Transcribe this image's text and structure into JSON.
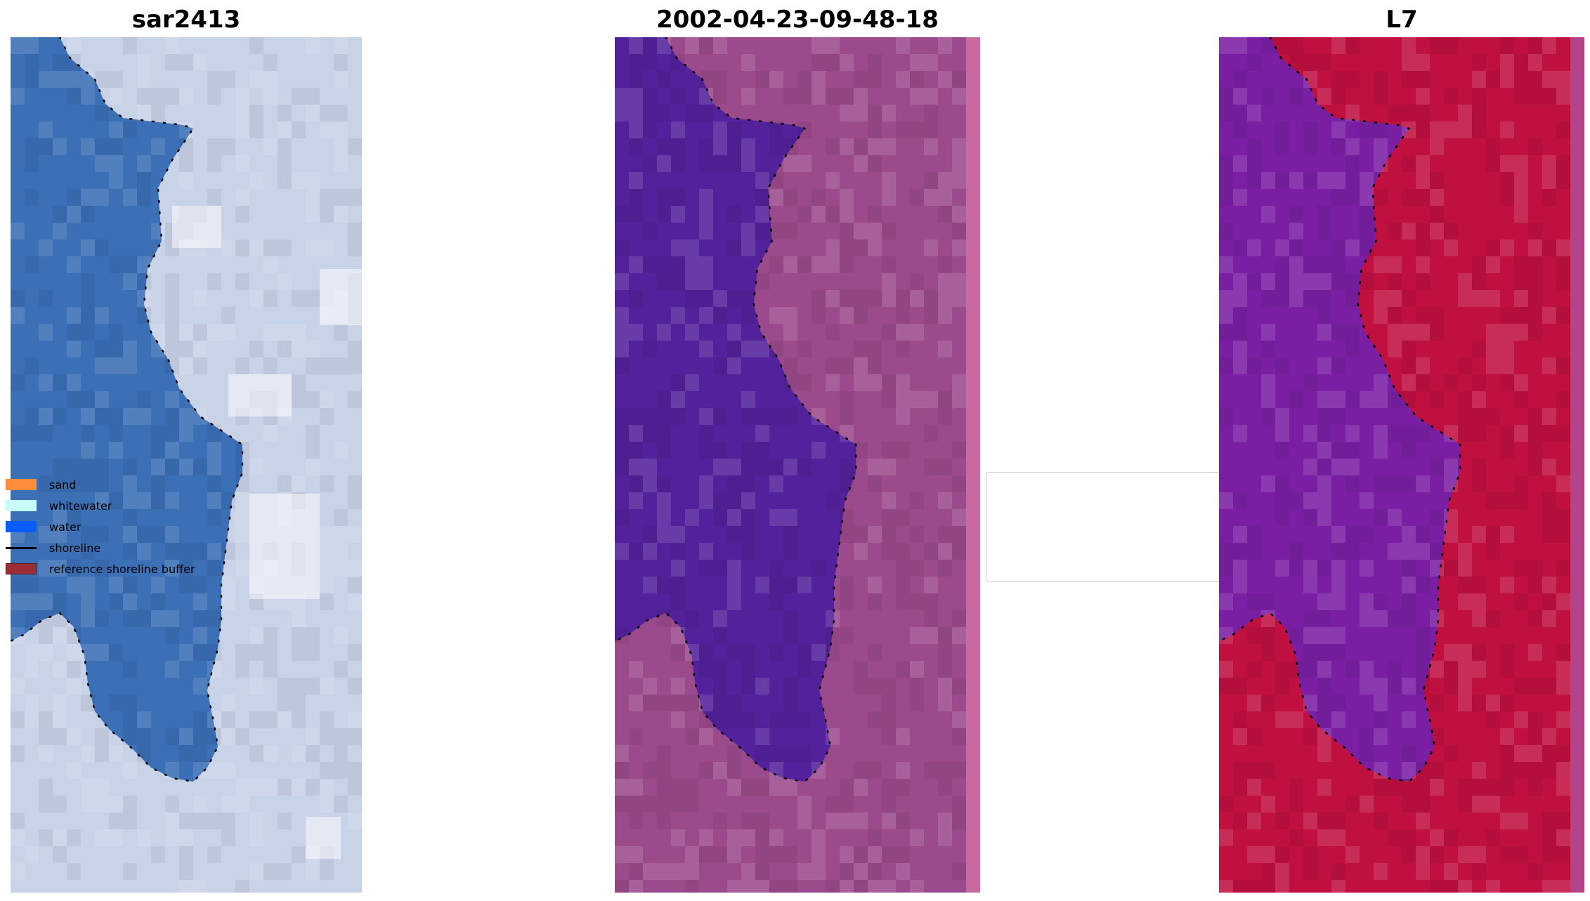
{
  "panels": [
    {
      "title": "sar2413",
      "style": "rgb"
    },
    {
      "title": "2002-04-23-09-48-18",
      "style": "classified"
    },
    {
      "title": "L7",
      "style": "index"
    }
  ],
  "legend": {
    "items": [
      {
        "label": "sand",
        "color": "#ff8c3a",
        "kind": "patch"
      },
      {
        "label": "whitewater",
        "color": "#c8fcfc",
        "kind": "patch"
      },
      {
        "label": "water",
        "color": "#0a5cff",
        "kind": "patch"
      },
      {
        "label": "shoreline",
        "color": "#000000",
        "kind": "line"
      },
      {
        "label": "reference shoreline buffer",
        "color": "#9b2d33",
        "kind": "patch"
      }
    ]
  },
  "colors": {
    "rgb_water": "#3b6fb6",
    "rgb_land": "#c9d3e8",
    "class_water": "#52219b",
    "class_land": "#9b4b8c",
    "index_water": "#7a1fa3",
    "index_land": "#c01040"
  }
}
